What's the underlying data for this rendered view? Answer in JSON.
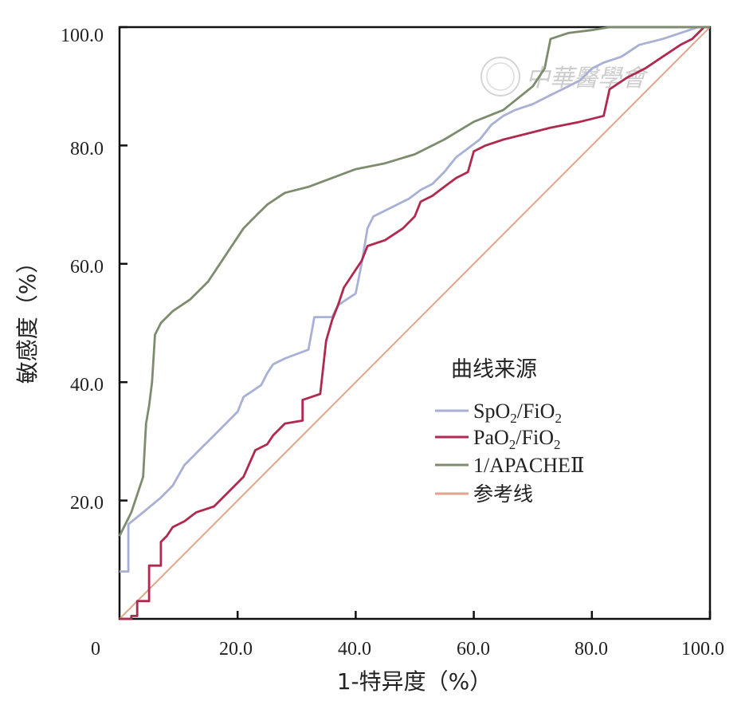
{
  "chart_data": {
    "type": "line",
    "title": "",
    "xlabel": "1-特异度（%）",
    "ylabel": "敏感度（%）",
    "xlim": [
      0,
      100
    ],
    "ylim": [
      0,
      100
    ],
    "x_ticks": [
      "0",
      "20.0",
      "40.0",
      "60.0",
      "80.0",
      "100.0"
    ],
    "y_ticks": [
      "20.0",
      "40.0",
      "60.0",
      "80.0",
      "100.0"
    ],
    "legend": {
      "title": "曲线来源",
      "placement": "center-right"
    },
    "series": [
      {
        "name": "SpO2/FiO2",
        "label_main": "SpO",
        "label_sub1": "2",
        "label_mid": "/FiO",
        "label_sub2": "2",
        "color": "#a8b0d6",
        "points": [
          [
            0,
            8
          ],
          [
            1.5,
            8
          ],
          [
            1.5,
            16
          ],
          [
            4,
            18
          ],
          [
            7,
            20.5
          ],
          [
            9,
            22.5
          ],
          [
            11,
            26
          ],
          [
            14,
            29
          ],
          [
            16,
            31
          ],
          [
            18,
            33
          ],
          [
            20,
            35
          ],
          [
            21,
            37.5
          ],
          [
            24,
            39.5
          ],
          [
            25,
            41.5
          ],
          [
            26,
            43
          ],
          [
            28,
            44
          ],
          [
            32,
            45.5
          ],
          [
            33,
            51
          ],
          [
            36,
            51
          ],
          [
            37,
            53
          ],
          [
            40,
            55
          ],
          [
            41,
            60
          ],
          [
            42,
            66
          ],
          [
            43,
            68
          ],
          [
            47,
            70
          ],
          [
            49,
            71
          ],
          [
            51,
            72.5
          ],
          [
            53,
            73.5
          ],
          [
            55,
            75.5
          ],
          [
            57,
            78
          ],
          [
            59,
            79.5
          ],
          [
            61,
            81
          ],
          [
            63,
            83.5
          ],
          [
            65,
            85
          ],
          [
            67,
            86
          ],
          [
            70,
            87
          ],
          [
            72,
            88
          ],
          [
            74,
            89
          ],
          [
            76,
            90
          ],
          [
            78,
            91
          ],
          [
            80,
            93
          ],
          [
            82,
            94
          ],
          [
            85,
            95
          ],
          [
            88,
            97
          ],
          [
            92,
            98
          ],
          [
            95,
            99
          ],
          [
            98,
            100
          ],
          [
            100,
            100
          ]
        ]
      },
      {
        "name": "PaO2/FiO2",
        "label_main": "PaO",
        "label_sub1": "2",
        "label_mid": "/FiO",
        "label_sub2": "2",
        "color": "#b0294e",
        "points": [
          [
            0,
            0
          ],
          [
            2,
            0
          ],
          [
            2,
            0.5
          ],
          [
            3,
            0.5
          ],
          [
            3,
            3
          ],
          [
            5,
            3
          ],
          [
            5,
            9
          ],
          [
            7,
            9
          ],
          [
            7,
            13
          ],
          [
            8,
            14
          ],
          [
            9,
            15.5
          ],
          [
            11,
            16.5
          ],
          [
            13,
            18
          ],
          [
            16,
            19
          ],
          [
            17,
            20
          ],
          [
            19,
            22
          ],
          [
            21,
            24
          ],
          [
            23,
            28.5
          ],
          [
            25,
            29.5
          ],
          [
            26,
            31
          ],
          [
            28,
            33
          ],
          [
            31,
            33.5
          ],
          [
            31,
            37
          ],
          [
            34,
            38
          ],
          [
            35,
            47
          ],
          [
            36,
            50.5
          ],
          [
            37,
            53
          ],
          [
            38,
            56
          ],
          [
            39,
            57.5
          ],
          [
            40,
            59
          ],
          [
            41,
            60.5
          ],
          [
            42,
            63
          ],
          [
            45,
            64
          ],
          [
            48,
            66
          ],
          [
            50,
            68
          ],
          [
            51,
            70.5
          ],
          [
            53,
            71.5
          ],
          [
            55,
            73
          ],
          [
            57,
            74.5
          ],
          [
            59,
            75.5
          ],
          [
            60,
            79
          ],
          [
            62,
            80
          ],
          [
            65,
            81
          ],
          [
            69,
            82
          ],
          [
            73,
            83
          ],
          [
            78,
            84
          ],
          [
            82,
            85
          ],
          [
            83,
            89.5
          ],
          [
            86,
            91.5
          ],
          [
            89,
            93
          ],
          [
            92,
            95
          ],
          [
            95,
            97
          ],
          [
            97,
            98
          ],
          [
            99,
            100
          ],
          [
            100,
            100
          ]
        ]
      },
      {
        "name": "1/APACHEⅡ",
        "color": "#7e8c6e",
        "points": [
          [
            0,
            14
          ],
          [
            2,
            18
          ],
          [
            3,
            21
          ],
          [
            4,
            24
          ],
          [
            4.5,
            33
          ],
          [
            5,
            36
          ],
          [
            5.5,
            40
          ],
          [
            6,
            48
          ],
          [
            7,
            50
          ],
          [
            8,
            51
          ],
          [
            9,
            52
          ],
          [
            12,
            54
          ],
          [
            15,
            57
          ],
          [
            17,
            60
          ],
          [
            19,
            63
          ],
          [
            21,
            66
          ],
          [
            23,
            68
          ],
          [
            25,
            70
          ],
          [
            28,
            72
          ],
          [
            32,
            73
          ],
          [
            36,
            74.5
          ],
          [
            40,
            76
          ],
          [
            45,
            77
          ],
          [
            50,
            78.5
          ],
          [
            55,
            81
          ],
          [
            60,
            84
          ],
          [
            65,
            86
          ],
          [
            70,
            90
          ],
          [
            72,
            93
          ],
          [
            73,
            98
          ],
          [
            76,
            99
          ],
          [
            80,
            99.5
          ],
          [
            83,
            100
          ],
          [
            100,
            100
          ]
        ]
      },
      {
        "name": "参考线",
        "color": "#e0a58a",
        "points": [
          [
            0,
            0
          ],
          [
            100,
            100
          ]
        ]
      }
    ]
  },
  "watermark": {
    "text": "中華醫學會"
  }
}
